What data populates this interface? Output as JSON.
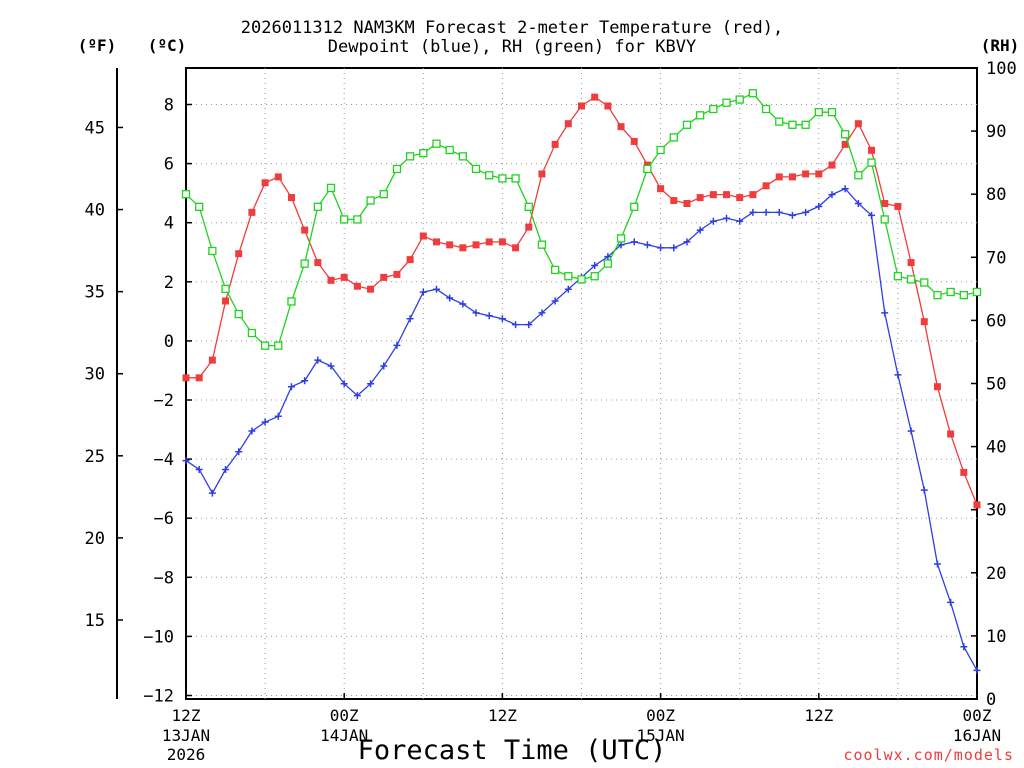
{
  "chart_data": {
    "type": "line",
    "title": "2026011312 NAM3KM Forecast 2-meter Temperature (red),",
    "subtitle": "Dewpoint (blue), RH (green) for KBVY",
    "xlabel": "Forecast Time (UTC)",
    "axis_left_outer_label": "(ºF)",
    "axis_left_inner_label": "(ºC)",
    "axis_right_label": "(RH)",
    "xlim": [
      0,
      60
    ],
    "ylim_c": [
      -12,
      9.5
    ],
    "ylim_rh": [
      0,
      100
    ],
    "c_ticks": [
      "-12",
      "-10",
      "-8",
      "-6",
      "-4",
      "-2",
      "0",
      "2",
      "4",
      "6",
      "8"
    ],
    "f_ticks": [
      "15",
      "20",
      "25",
      "30",
      "35",
      "40",
      "45"
    ],
    "rh_ticks": [
      "0",
      "10",
      "20",
      "30",
      "40",
      "50",
      "60",
      "70",
      "80",
      "90",
      "100"
    ],
    "x_ticks": [
      {
        "x": 0,
        "line1": "12Z",
        "line2": "13JAN",
        "line3": "2026"
      },
      {
        "x": 12,
        "line1": "00Z",
        "line2": "14JAN",
        "line3": ""
      },
      {
        "x": 24,
        "line1": "12Z",
        "line2": "",
        "line3": ""
      },
      {
        "x": 36,
        "line1": "00Z",
        "line2": "15JAN",
        "line3": ""
      },
      {
        "x": 48,
        "line1": "12Z",
        "line2": "",
        "line3": ""
      },
      {
        "x": 60,
        "line1": "00Z",
        "line2": "16JAN",
        "line3": ""
      }
    ],
    "x_grid": [
      6,
      12,
      18,
      24,
      30,
      36,
      42,
      48,
      54
    ],
    "series": [
      {
        "name": "Temperature",
        "unit": "C",
        "color": "#ef3c3c",
        "marker": "filled-square",
        "values": [
          -1.25,
          -1.25,
          -0.65,
          1.35,
          2.95,
          4.35,
          5.35,
          5.55,
          4.85,
          3.75,
          2.65,
          2.05,
          2.15,
          1.85,
          1.75,
          2.15,
          2.25,
          2.75,
          3.55,
          3.35,
          3.25,
          3.15,
          3.25,
          3.35,
          3.35,
          3.15,
          3.85,
          5.65,
          6.65,
          7.35,
          7.95,
          8.25,
          7.95,
          7.25,
          6.75,
          5.95,
          5.15,
          4.75,
          4.65,
          4.85,
          4.95,
          4.95,
          4.85,
          4.95,
          5.25,
          5.55,
          5.55,
          5.65,
          5.65,
          5.95,
          6.65,
          7.35,
          6.45,
          4.65,
          4.55,
          2.65,
          0.65,
          -1.55,
          -3.15,
          -4.45,
          -5.55
        ]
      },
      {
        "name": "Dewpoint",
        "unit": "C",
        "color": "#2e3fe2",
        "marker": "plus",
        "values": [
          -4.05,
          -4.35,
          -5.15,
          -4.35,
          -3.75,
          -3.05,
          -2.75,
          -2.55,
          -1.55,
          -1.35,
          -0.65,
          -0.85,
          -1.45,
          -1.85,
          -1.45,
          -0.85,
          -0.15,
          0.75,
          1.65,
          1.75,
          1.45,
          1.25,
          0.95,
          0.85,
          0.75,
          0.55,
          0.55,
          0.95,
          1.35,
          1.75,
          2.15,
          2.55,
          2.85,
          3.25,
          3.35,
          3.25,
          3.15,
          3.15,
          3.35,
          3.75,
          4.05,
          4.15,
          4.05,
          4.35,
          4.35,
          4.35,
          4.25,
          4.35,
          4.55,
          4.95,
          5.15,
          4.65,
          4.25,
          0.95,
          -1.15,
          -3.05,
          -5.05,
          -7.55,
          -8.85,
          -10.35,
          -11.15
        ]
      },
      {
        "name": "RH",
        "unit": "%",
        "color": "#1fd31f",
        "marker": "open-square",
        "values": [
          80,
          78,
          71,
          65,
          61,
          58,
          56,
          56,
          63,
          69,
          78,
          81,
          76,
          76,
          79,
          80,
          84,
          86,
          86.5,
          88,
          87,
          86,
          84,
          83,
          82.5,
          82.5,
          78,
          72,
          68,
          67,
          66.5,
          67,
          69,
          73,
          78,
          84,
          87,
          89,
          91,
          92.5,
          93.5,
          94.5,
          95,
          96,
          93.5,
          91.5,
          91,
          91,
          93,
          93,
          89.5,
          83,
          85,
          76,
          67,
          66.5,
          66,
          64,
          64.5,
          64,
          64.5
        ]
      }
    ]
  },
  "watermark": "coolwx.com/models"
}
